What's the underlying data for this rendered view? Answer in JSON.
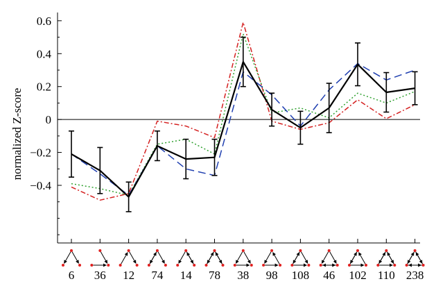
{
  "chart_data": {
    "type": "line",
    "ylabel": "normalized Z-score",
    "ylim": [
      -0.75,
      0.65
    ],
    "yticks": [
      -0.4,
      -0.2,
      0,
      0.2,
      0.4,
      0.6
    ],
    "ytick_labels": [
      "−0.4",
      "−0.2",
      "0",
      "0.2",
      "0.4",
      "0.6"
    ],
    "categories": [
      "6",
      "36",
      "12",
      "74",
      "14",
      "78",
      "38",
      "98",
      "108",
      "46",
      "102",
      "110",
      "238"
    ],
    "zero_line": true,
    "motif_icons": true,
    "series": [
      {
        "color": "#000000",
        "style": "solid",
        "values": [
          -0.21,
          -0.31,
          -0.47,
          -0.16,
          -0.24,
          -0.23,
          0.35,
          0.06,
          -0.05,
          0.07,
          0.335,
          0.165,
          0.19
        ],
        "errors": [
          0.14,
          0.14,
          0.09,
          0.09,
          0.12,
          0.11,
          0.15,
          0.1,
          0.1,
          0.15,
          0.13,
          0.12,
          0.1
        ]
      },
      {
        "color": "#1f3fb0",
        "style": "dashed",
        "values": [
          -0.21,
          -0.33,
          -0.46,
          -0.16,
          -0.3,
          -0.34,
          0.29,
          0.15,
          -0.04,
          0.18,
          0.34,
          0.24,
          0.3
        ]
      },
      {
        "color": "#2ea02e",
        "style": "dotted",
        "values": [
          -0.39,
          -0.42,
          -0.46,
          -0.15,
          -0.12,
          -0.21,
          0.52,
          0.04,
          0.07,
          0.01,
          0.16,
          0.1,
          0.17
        ]
      },
      {
        "color": "#d42020",
        "style": "dashdot",
        "values": [
          -0.41,
          -0.49,
          -0.45,
          -0.01,
          -0.04,
          -0.11,
          0.59,
          -0.01,
          -0.06,
          -0.02,
          0.12,
          0.005,
          0.09
        ]
      }
    ]
  }
}
